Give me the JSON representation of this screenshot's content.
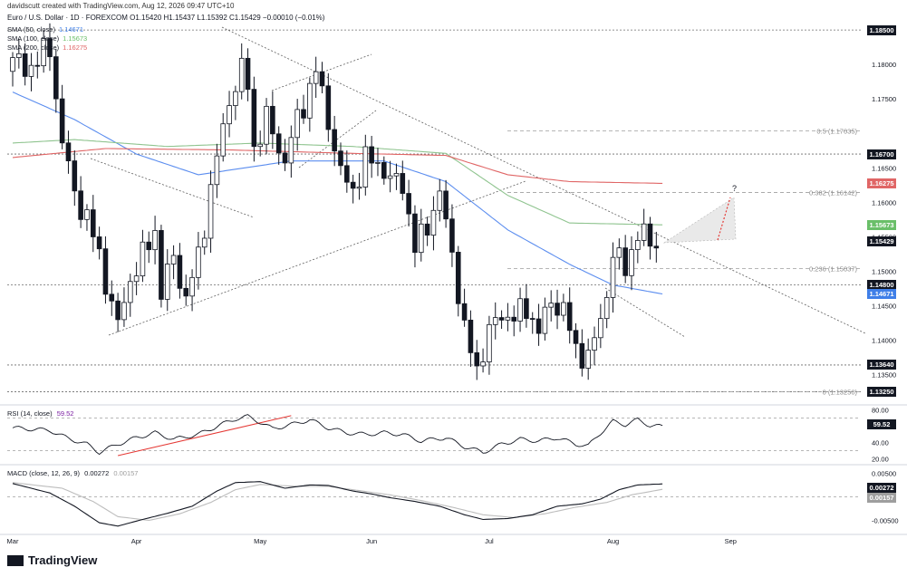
{
  "header": {
    "credit": "davidscutt created with TradingView.com, Aug 12, 2026 09:47 UTC+10",
    "title": "Euro / U.S. Dollar · 1D · FOREXCOM  O1.15420  H1.15437  L1.15392  C1.15429  −0.00010 (−0.01%)"
  },
  "legend": [
    {
      "label": "SMA (50, close)",
      "value": "1.14671",
      "color": "#5b8def"
    },
    {
      "label": "SMA (100, close)",
      "value": "1.15673",
      "color": "#8fc48f"
    },
    {
      "label": "SMA (200, close)",
      "value": "1.16275",
      "color": "#e06666"
    }
  ],
  "price_tags": [
    {
      "text": "1.18500",
      "price": 1.185,
      "bg": "#131722"
    },
    {
      "text": "1.16700",
      "price": 1.167,
      "bg": "#131722"
    },
    {
      "text": "1.16275",
      "price": 1.16275,
      "bg": "#e06666"
    },
    {
      "text": "1.15673",
      "price": 1.15673,
      "bg": "#6abf69"
    },
    {
      "text": "1.15429",
      "price": 1.15429,
      "bg": "#131722"
    },
    {
      "text": "1.14800",
      "price": 1.148,
      "bg": "#131722"
    },
    {
      "text": "1.14671",
      "price": 1.14671,
      "bg": "#3f7fe8"
    },
    {
      "text": "1.13640",
      "price": 1.1364,
      "bg": "#131722"
    },
    {
      "text": "1.13250",
      "price": 1.1325,
      "bg": "#131722"
    }
  ],
  "rsi": {
    "title": "RSI (14, close)",
    "value": "59.52",
    "tag": "59.52"
  },
  "macd": {
    "title": "MACD (close, 12, 26, 9)",
    "value1": "0.00272",
    "value2": "0.00157",
    "tag1": "0.00272",
    "tag2": "0.00157",
    "color1": "#131722",
    "color2": "#bdbdbd"
  },
  "annotation_question": "?",
  "brand": "TradingView",
  "chart_data": [
    {
      "type": "candlestick",
      "title": "Euro / U.S. Dollar · 1D · FOREXCOM",
      "x_labels": [
        "Mar",
        "Apr",
        "May",
        "Jun",
        "Jul",
        "Aug",
        "Sep"
      ],
      "x_label_day": [
        0,
        20,
        40,
        58,
        77,
        97,
        116
      ],
      "ylim": [
        1.131,
        1.1862
      ],
      "y_ticks": [
        "1.18000",
        "1.17500",
        "1.16500",
        "1.16000",
        "1.15500",
        "1.15000",
        "1.14500",
        "1.14000",
        "1.13500"
      ],
      "y_tick_values": [
        1.18,
        1.175,
        1.165,
        1.16,
        1.155,
        1.15,
        1.145,
        1.14,
        1.135
      ],
      "horizontal_levels": [
        1.185,
        1.167,
        1.148,
        1.1364,
        1.1325
      ],
      "fibonacci": [
        {
          "label": "0.5 (1.17035)",
          "price": 1.17035
        },
        {
          "label": "0.382 (1.16142)",
          "price": 1.16142
        },
        {
          "label": "0.236 (1.15037)",
          "price": 1.15037
        },
        {
          "label": "0 (1.13250)",
          "price": 1.1325
        }
      ],
      "close_anchors": [
        [
          0,
          1.181
        ],
        [
          2,
          1.179
        ],
        [
          4,
          1.181
        ],
        [
          6,
          1.182
        ],
        [
          8,
          1.169
        ],
        [
          10,
          1.161
        ],
        [
          12,
          1.158
        ],
        [
          14,
          1.152
        ],
        [
          17,
          1.142
        ],
        [
          19,
          1.149
        ],
        [
          21,
          1.152
        ],
        [
          23,
          1.156
        ],
        [
          24,
          1.147
        ],
        [
          26,
          1.152
        ],
        [
          28,
          1.146
        ],
        [
          30,
          1.152
        ],
        [
          32,
          1.162
        ],
        [
          35,
          1.175
        ],
        [
          37,
          1.179
        ],
        [
          38,
          1.177
        ],
        [
          39,
          1.168
        ],
        [
          41,
          1.172
        ],
        [
          44,
          1.166
        ],
        [
          46,
          1.172
        ],
        [
          49,
          1.179
        ],
        [
          51,
          1.172
        ],
        [
          53,
          1.164
        ],
        [
          55,
          1.162
        ],
        [
          57,
          1.166
        ],
        [
          59,
          1.166
        ],
        [
          61,
          1.163
        ],
        [
          63,
          1.163
        ],
        [
          65,
          1.153
        ],
        [
          67,
          1.157
        ],
        [
          69,
          1.161
        ],
        [
          71,
          1.153
        ],
        [
          73,
          1.141
        ],
        [
          75,
          1.136
        ],
        [
          77,
          1.141
        ],
        [
          79,
          1.144
        ],
        [
          81,
          1.143
        ],
        [
          83,
          1.145
        ],
        [
          85,
          1.141
        ],
        [
          87,
          1.146
        ],
        [
          89,
          1.144
        ],
        [
          91,
          1.139
        ],
        [
          93,
          1.137
        ],
        [
          94,
          1.14
        ],
        [
          96,
          1.147
        ],
        [
          97,
          1.152
        ],
        [
          99,
          1.151
        ],
        [
          101,
          1.155
        ],
        [
          102,
          1.155
        ],
        [
          104,
          1.1543
        ]
      ],
      "candle_count": 105,
      "series": [
        {
          "name": "SMA (50, close)",
          "color": "#5b8def",
          "anchors": [
            [
              0,
              1.176
            ],
            [
              10,
              1.172
            ],
            [
              20,
              1.167
            ],
            [
              30,
              1.164
            ],
            [
              45,
              1.166
            ],
            [
              60,
              1.166
            ],
            [
              70,
              1.163
            ],
            [
              80,
              1.156
            ],
            [
              90,
              1.151
            ],
            [
              97,
              1.148
            ],
            [
              105,
              1.1467
            ]
          ]
        },
        {
          "name": "SMA (100, close)",
          "color": "#8fc48f",
          "anchors": [
            [
              0,
              1.1686
            ],
            [
              10,
              1.1691
            ],
            [
              25,
              1.1681
            ],
            [
              40,
              1.1686
            ],
            [
              55,
              1.1681
            ],
            [
              70,
              1.1671
            ],
            [
              80,
              1.161
            ],
            [
              90,
              1.157
            ],
            [
              105,
              1.15673
            ]
          ]
        },
        {
          "name": "SMA (200, close)",
          "color": "#e06666",
          "anchors": [
            [
              0,
              1.1665
            ],
            [
              15,
              1.1678
            ],
            [
              35,
              1.1676
            ],
            [
              55,
              1.1671
            ],
            [
              70,
              1.1668
            ],
            [
              80,
              1.164
            ],
            [
              90,
              1.163
            ],
            [
              105,
              1.16275
            ]
          ]
        }
      ]
    },
    {
      "type": "line",
      "title": "RSI (14, close)",
      "ylim": [
        14,
        84
      ],
      "y_ticks": [
        "80.00",
        "40.00",
        "20.00"
      ],
      "y_tick_values": [
        80,
        40,
        20
      ],
      "reference_lines": [
        70,
        30
      ],
      "series": [
        {
          "name": "RSI (14, close)",
          "color": "#131722",
          "anchors": [
            [
              0,
              58
            ],
            [
              6,
              55
            ],
            [
              9,
              45
            ],
            [
              12,
              38
            ],
            [
              14,
              28
            ],
            [
              17,
              38
            ],
            [
              20,
              46
            ],
            [
              23,
              52
            ],
            [
              26,
              44
            ],
            [
              30,
              50
            ],
            [
              33,
              60
            ],
            [
              36,
              69
            ],
            [
              38,
              72
            ],
            [
              40,
              65
            ],
            [
              42,
              57
            ],
            [
              45,
              62
            ],
            [
              48,
              68
            ],
            [
              51,
              58
            ],
            [
              54,
              52
            ],
            [
              57,
              50
            ],
            [
              60,
              52
            ],
            [
              63,
              50
            ],
            [
              66,
              42
            ],
            [
              70,
              46
            ],
            [
              73,
              35
            ],
            [
              76,
              28
            ],
            [
              79,
              38
            ],
            [
              82,
              44
            ],
            [
              85,
              42
            ],
            [
              88,
              46
            ],
            [
              91,
              38
            ],
            [
              93,
              36
            ],
            [
              95,
              52
            ],
            [
              97,
              66
            ],
            [
              99,
              62
            ],
            [
              101,
              68
            ],
            [
              103,
              61
            ],
            [
              105,
              59.5
            ]
          ]
        }
      ]
    },
    {
      "type": "line",
      "title": "MACD (close, 12, 26, 9)",
      "ylim": [
        -0.0072,
        0.0064
      ],
      "y_ticks": [
        "0.00500",
        "-0.00500"
      ],
      "y_tick_values": [
        0.005,
        -0.005
      ],
      "series": [
        {
          "name": "MACD",
          "color": "#131722",
          "anchors": [
            [
              0,
              0.0028
            ],
            [
              6,
              0.0008
            ],
            [
              10,
              -0.002
            ],
            [
              14,
              -0.0055
            ],
            [
              17,
              -0.0062
            ],
            [
              21,
              -0.0048
            ],
            [
              25,
              -0.0035
            ],
            [
              29,
              -0.002
            ],
            [
              33,
              0.0012
            ],
            [
              36,
              0.003
            ],
            [
              40,
              0.0032
            ],
            [
              44,
              0.0018
            ],
            [
              48,
              0.0025
            ],
            [
              51,
              0.0024
            ],
            [
              55,
              0.0012
            ],
            [
              58,
              0.0006
            ],
            [
              61,
              -0.0002
            ],
            [
              65,
              -0.001
            ],
            [
              69,
              -0.002
            ],
            [
              73,
              -0.0038
            ],
            [
              76,
              -0.0048
            ],
            [
              80,
              -0.0046
            ],
            [
              84,
              -0.0038
            ],
            [
              88,
              -0.002
            ],
            [
              92,
              -0.0015
            ],
            [
              95,
              -0.0005
            ],
            [
              98,
              0.0015
            ],
            [
              101,
              0.0025
            ],
            [
              105,
              0.00272
            ]
          ]
        },
        {
          "name": "Signal",
          "color": "#bdbdbd",
          "anchors": [
            [
              0,
              0.003
            ],
            [
              8,
              0.0018
            ],
            [
              13,
              -0.001
            ],
            [
              17,
              -0.0042
            ],
            [
              22,
              -0.005
            ],
            [
              27,
              -0.0036
            ],
            [
              32,
              -0.0012
            ],
            [
              36,
              0.0015
            ],
            [
              40,
              0.0026
            ],
            [
              46,
              0.0022
            ],
            [
              51,
              0.0022
            ],
            [
              56,
              0.0013
            ],
            [
              61,
              0.0004
            ],
            [
              66,
              -0.0008
            ],
            [
              71,
              -0.0022
            ],
            [
              76,
              -0.0038
            ],
            [
              81,
              -0.0044
            ],
            [
              86,
              -0.0036
            ],
            [
              91,
              -0.0022
            ],
            [
              96,
              -0.0012
            ],
            [
              100,
              0.0004
            ],
            [
              105,
              0.00157
            ]
          ]
        }
      ]
    }
  ]
}
